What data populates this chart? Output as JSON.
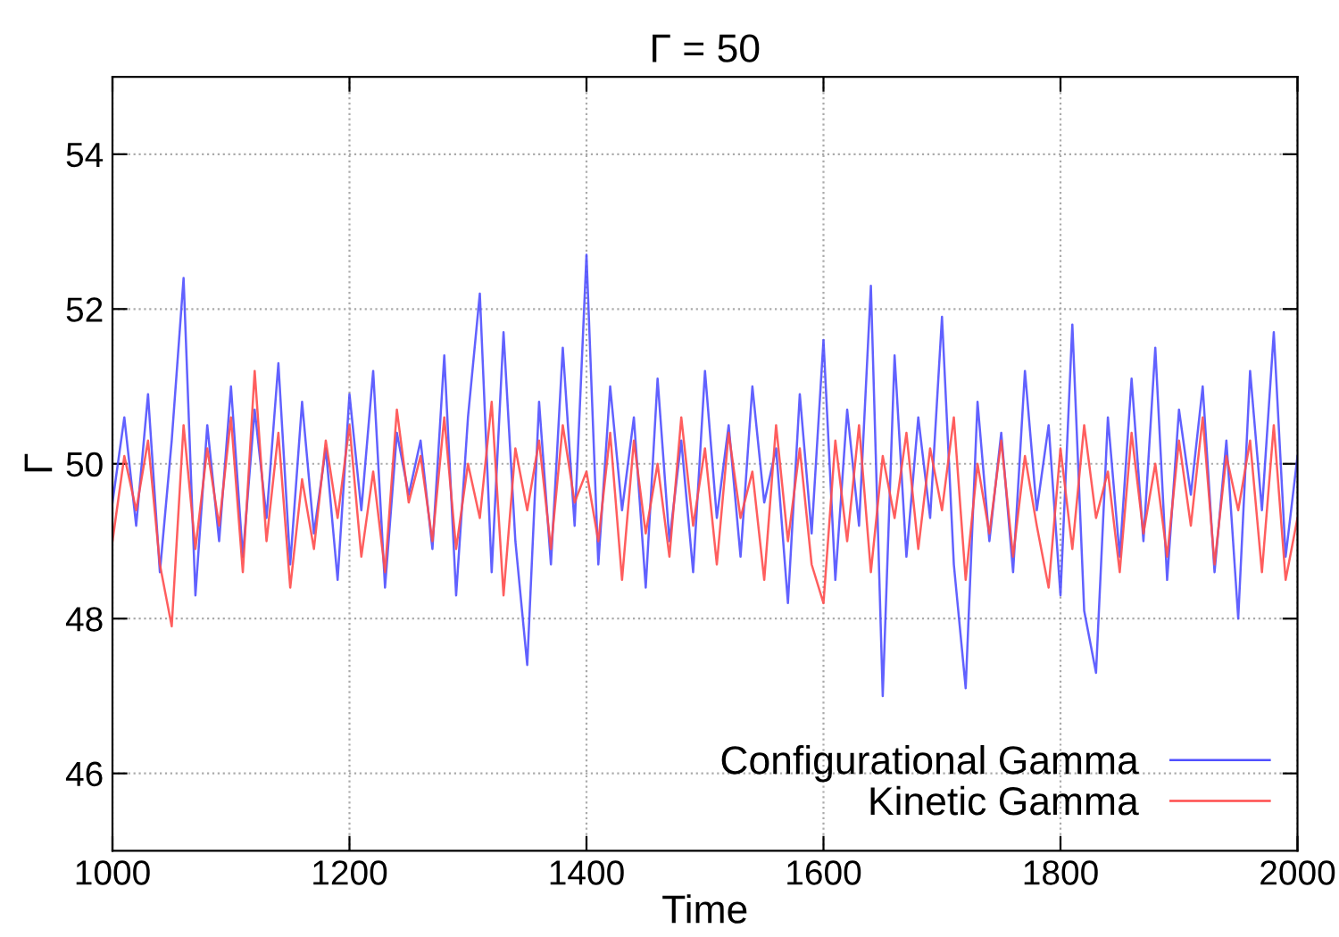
{
  "chart_data": {
    "type": "line",
    "title": "Γ = 50",
    "xlabel": "Time",
    "ylabel": "Γ",
    "x": [
      1000,
      1010,
      1020,
      1030,
      1040,
      1050,
      1060,
      1070,
      1080,
      1090,
      1100,
      1110,
      1120,
      1130,
      1140,
      1150,
      1160,
      1170,
      1180,
      1190,
      1200,
      1210,
      1220,
      1230,
      1240,
      1250,
      1260,
      1270,
      1280,
      1290,
      1300,
      1310,
      1320,
      1330,
      1340,
      1350,
      1360,
      1370,
      1380,
      1390,
      1400,
      1410,
      1420,
      1430,
      1440,
      1450,
      1460,
      1470,
      1480,
      1490,
      1500,
      1510,
      1520,
      1530,
      1540,
      1550,
      1560,
      1570,
      1580,
      1590,
      1600,
      1610,
      1620,
      1630,
      1640,
      1650,
      1660,
      1670,
      1680,
      1690,
      1700,
      1710,
      1720,
      1730,
      1740,
      1750,
      1760,
      1770,
      1780,
      1790,
      1800,
      1810,
      1820,
      1830,
      1840,
      1850,
      1860,
      1870,
      1880,
      1890,
      1900,
      1910,
      1920,
      1930,
      1940,
      1950,
      1960,
      1970,
      1980,
      1990,
      2000
    ],
    "series": [
      {
        "name": "Configurational Gamma",
        "color": "#5050ff",
        "values": [
          49.5,
          50.6,
          49.2,
          50.9,
          48.6,
          50.3,
          52.4,
          48.3,
          50.5,
          49.0,
          51.0,
          48.8,
          50.7,
          49.3,
          51.3,
          48.7,
          50.8,
          49.1,
          50.2,
          48.5,
          50.9,
          49.4,
          51.2,
          48.4,
          50.4,
          49.6,
          50.3,
          48.9,
          51.4,
          48.3,
          50.6,
          52.2,
          48.6,
          51.7,
          49.0,
          47.4,
          50.8,
          48.7,
          51.5,
          49.2,
          52.7,
          48.7,
          51.0,
          49.4,
          50.6,
          48.4,
          51.1,
          49.0,
          50.3,
          48.6,
          51.2,
          49.3,
          50.5,
          48.8,
          51.0,
          49.5,
          50.2,
          48.2,
          50.9,
          49.1,
          51.6,
          48.5,
          50.7,
          49.2,
          52.3,
          47.0,
          51.4,
          48.8,
          50.6,
          49.3,
          51.9,
          48.7,
          47.1,
          50.8,
          49.0,
          50.4,
          48.6,
          51.2,
          49.4,
          50.5,
          48.3,
          51.8,
          48.1,
          47.3,
          50.6,
          48.8,
          51.1,
          49.0,
          51.5,
          48.5,
          50.7,
          49.6,
          51.0,
          48.6,
          50.3,
          48.0,
          51.2,
          49.4,
          51.7,
          48.8,
          50.1
        ]
      },
      {
        "name": "Kinetic Gamma",
        "color": "#ff4d4d",
        "values": [
          49.0,
          50.1,
          49.4,
          50.3,
          48.7,
          47.9,
          50.5,
          48.9,
          50.2,
          49.2,
          50.6,
          48.6,
          51.2,
          49.0,
          50.4,
          48.4,
          49.8,
          48.9,
          50.3,
          49.3,
          50.5,
          48.8,
          49.9,
          48.6,
          50.7,
          49.5,
          50.1,
          49.0,
          50.6,
          48.9,
          50.0,
          49.3,
          50.8,
          48.3,
          50.2,
          49.4,
          50.3,
          48.9,
          50.5,
          49.5,
          49.9,
          49.0,
          50.4,
          48.5,
          50.3,
          49.1,
          50.0,
          48.8,
          50.6,
          49.2,
          50.2,
          48.7,
          50.4,
          49.3,
          49.9,
          48.5,
          50.5,
          49.0,
          50.2,
          48.7,
          48.2,
          50.3,
          49.0,
          50.5,
          48.6,
          50.1,
          49.3,
          50.4,
          48.9,
          50.2,
          49.4,
          50.6,
          48.5,
          50.0,
          49.1,
          50.3,
          48.8,
          50.1,
          49.2,
          48.4,
          50.2,
          48.9,
          50.5,
          49.3,
          49.9,
          48.6,
          50.4,
          49.1,
          50.0,
          48.8,
          50.3,
          49.2,
          50.6,
          48.7,
          50.1,
          49.4,
          50.3,
          48.6,
          50.5,
          48.5,
          49.3
        ]
      }
    ],
    "xlim": [
      1000,
      2000
    ],
    "xticks": [
      1000,
      1200,
      1400,
      1600,
      1800,
      2000
    ],
    "ylim": [
      45,
      55
    ],
    "yticks": [
      46,
      48,
      50,
      52,
      54
    ],
    "grid": true,
    "legend": "bottom right",
    "marker": "none",
    "line_style": "solid"
  }
}
